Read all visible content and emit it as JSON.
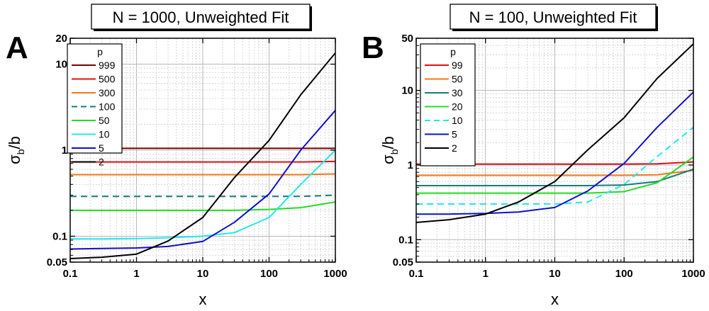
{
  "chart_data": [
    {
      "type": "line",
      "panel_label": "A",
      "title": "N = 1000, Unweighted Fit",
      "xlabel": "x",
      "ylabel_main": "σ",
      "ylabel_sub": "b",
      "ylabel_tail": "/b",
      "x_scale": "log",
      "y_scale": "log",
      "xlim": [
        0.1,
        1000
      ],
      "ylim": [
        0.05,
        20
      ],
      "x_ticks": [
        0.1,
        1,
        10,
        100,
        1000
      ],
      "x_tick_labels": [
        "0.1",
        "1",
        "10",
        "100",
        "1000"
      ],
      "y_ticks": [
        0.05,
        0.1,
        1,
        10,
        20
      ],
      "y_tick_labels": [
        "0.05",
        "0.1",
        "1",
        "10",
        "20"
      ],
      "grid": true,
      "legend_title": "p",
      "legend_position": "top-left",
      "x": [
        0.1,
        0.3,
        1,
        3,
        10,
        30,
        100,
        300,
        1000
      ],
      "series": [
        {
          "name": "999",
          "color": "#7a0000",
          "dash": false,
          "values": [
            1.05,
            1.05,
            1.05,
            1.05,
            1.05,
            1.05,
            1.05,
            1.05,
            1.05
          ]
        },
        {
          "name": "500",
          "color": "#e01010",
          "dash": false,
          "values": [
            0.73,
            0.73,
            0.73,
            0.73,
            0.73,
            0.73,
            0.73,
            0.73,
            0.74
          ]
        },
        {
          "name": "300",
          "color": "#f07818",
          "dash": false,
          "values": [
            0.52,
            0.52,
            0.52,
            0.52,
            0.52,
            0.52,
            0.52,
            0.52,
            0.53
          ]
        },
        {
          "name": "100",
          "color": "#1a7a7a",
          "dash": true,
          "values": [
            0.29,
            0.29,
            0.29,
            0.29,
            0.29,
            0.29,
            0.29,
            0.29,
            0.3
          ]
        },
        {
          "name": "50",
          "color": "#22dd22",
          "dash": false,
          "values": [
            0.2,
            0.2,
            0.2,
            0.2,
            0.2,
            0.2,
            0.205,
            0.215,
            0.25
          ]
        },
        {
          "name": "10",
          "color": "#22e8ee",
          "dash": false,
          "values": [
            0.093,
            0.093,
            0.094,
            0.096,
            0.1,
            0.11,
            0.165,
            0.4,
            1.0
          ]
        },
        {
          "name": "5",
          "color": "#1010cc",
          "dash": false,
          "values": [
            0.071,
            0.072,
            0.073,
            0.076,
            0.087,
            0.145,
            0.31,
            1.0,
            2.9
          ]
        },
        {
          "name": "2",
          "color": "#000000",
          "dash": false,
          "values": [
            0.055,
            0.057,
            0.062,
            0.088,
            0.165,
            0.48,
            1.3,
            4.4,
            13.5
          ]
        }
      ]
    },
    {
      "type": "line",
      "panel_label": "B",
      "title": "N = 100, Unweighted Fit",
      "xlabel": "x",
      "ylabel_main": "σ",
      "ylabel_sub": "b",
      "ylabel_tail": "/b",
      "x_scale": "log",
      "y_scale": "log",
      "xlim": [
        0.1,
        1000
      ],
      "ylim": [
        0.05,
        50
      ],
      "x_ticks": [
        0.1,
        1,
        10,
        100,
        1000
      ],
      "x_tick_labels": [
        "0.1",
        "1",
        "10",
        "100",
        "1000"
      ],
      "y_ticks": [
        0.05,
        0.1,
        1,
        10,
        50
      ],
      "y_tick_labels": [
        "0.05",
        "0.1",
        "1",
        "10",
        "50"
      ],
      "grid": true,
      "legend_title": "p",
      "legend_position": "top-left",
      "x": [
        0.1,
        0.3,
        1,
        3,
        10,
        30,
        100,
        300,
        1000
      ],
      "series": [
        {
          "name": "99",
          "color": "#e01010",
          "dash": false,
          "values": [
            1.03,
            1.03,
            1.03,
            1.03,
            1.03,
            1.03,
            1.03,
            1.04,
            1.1
          ]
        },
        {
          "name": "50",
          "color": "#f07818",
          "dash": false,
          "values": [
            0.73,
            0.73,
            0.73,
            0.73,
            0.73,
            0.73,
            0.73,
            0.74,
            0.85
          ]
        },
        {
          "name": "30",
          "color": "#1a7a7a",
          "dash": false,
          "values": [
            0.53,
            0.53,
            0.53,
            0.53,
            0.53,
            0.53,
            0.54,
            0.6,
            0.88
          ]
        },
        {
          "name": "20",
          "color": "#22dd22",
          "dash": false,
          "values": [
            0.42,
            0.42,
            0.42,
            0.42,
            0.42,
            0.42,
            0.44,
            0.58,
            1.28
          ]
        },
        {
          "name": "10",
          "color": "#22e8ee",
          "dash": true,
          "values": [
            0.3,
            0.3,
            0.3,
            0.3,
            0.3,
            0.32,
            0.55,
            1.3,
            3.2
          ]
        },
        {
          "name": "5",
          "color": "#1010cc",
          "dash": false,
          "values": [
            0.22,
            0.22,
            0.225,
            0.235,
            0.27,
            0.45,
            1.05,
            3.2,
            9.5
          ]
        },
        {
          "name": "2",
          "color": "#000000",
          "dash": false,
          "values": [
            0.17,
            0.185,
            0.22,
            0.32,
            0.6,
            1.6,
            4.3,
            14.5,
            42.0
          ]
        }
      ]
    }
  ]
}
